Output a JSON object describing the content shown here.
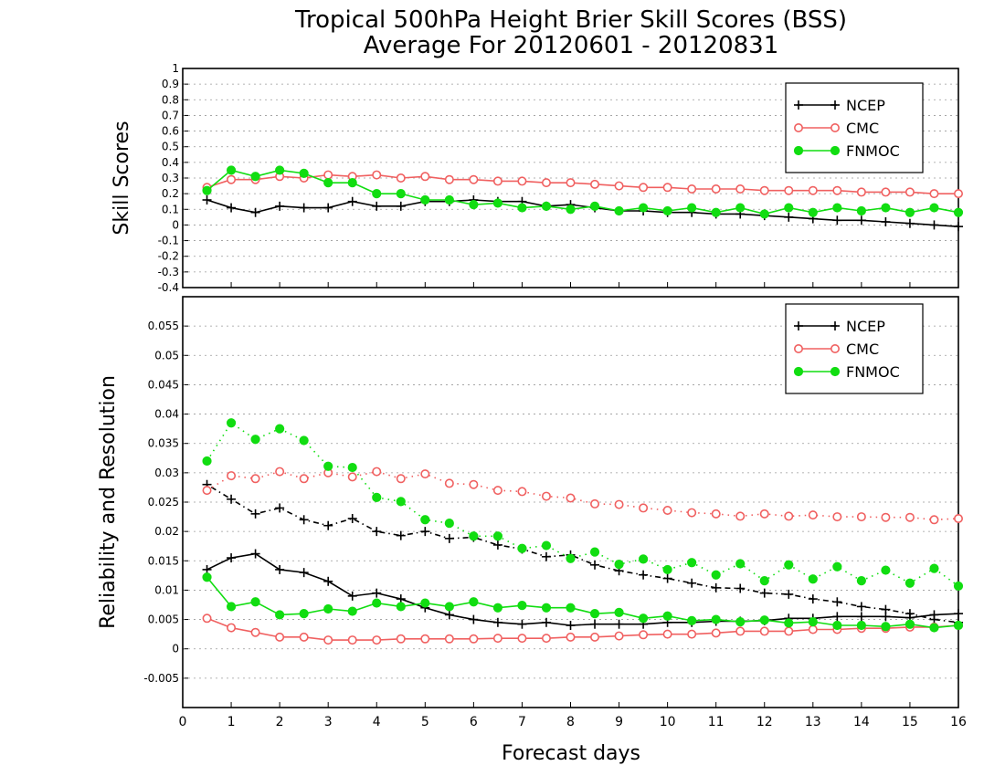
{
  "title_line1": "Tropical 500hPa Height Brier Skill Scores (BSS)",
  "title_line2": "Average For 20120601 - 20120831",
  "xlabel": "Forecast days",
  "x_ticks": [
    "0",
    "1",
    "2",
    "3",
    "4",
    "5",
    "6",
    "7",
    "8",
    "9",
    "10",
    "11",
    "12",
    "13",
    "14",
    "15",
    "16"
  ],
  "colors": {
    "NCEP": "#000000",
    "CMC": "#f06060",
    "FNMOC": "#11dd11"
  },
  "chart_data": [
    {
      "type": "line",
      "ylabel": "Skill Scores",
      "xlim": [
        0,
        16
      ],
      "ylim": [
        -0.4,
        1
      ],
      "y_ticks": [
        "1",
        "0.9",
        "0.8",
        "0.7",
        "0.6",
        "0.5",
        "0.4",
        "0.3",
        "0.2",
        "0.1",
        "0",
        "-0.1",
        "-0.2",
        "-0.3",
        "-0.4"
      ],
      "grid": true,
      "legend": "top-right",
      "x": [
        0.5,
        1,
        1.5,
        2,
        2.5,
        3,
        3.5,
        4,
        4.5,
        5,
        5.5,
        6,
        6.5,
        7,
        7.5,
        8,
        8.5,
        9,
        9.5,
        10,
        10.5,
        11,
        11.5,
        12,
        12.5,
        13,
        13.5,
        14,
        14.5,
        15,
        15.5,
        16
      ],
      "series": [
        {
          "name": "NCEP",
          "marker": "plus",
          "style": "solid",
          "values": [
            0.16,
            0.11,
            0.08,
            0.12,
            0.11,
            0.11,
            0.15,
            0.12,
            0.12,
            0.15,
            0.15,
            0.16,
            0.15,
            0.15,
            0.12,
            0.13,
            0.11,
            0.09,
            0.09,
            0.08,
            0.08,
            0.07,
            0.07,
            0.06,
            0.05,
            0.04,
            0.03,
            0.03,
            0.02,
            0.01,
            0.0,
            -0.01
          ]
        },
        {
          "name": "CMC",
          "marker": "circle",
          "style": "solid",
          "values": [
            0.24,
            0.29,
            0.29,
            0.31,
            0.3,
            0.32,
            0.31,
            0.32,
            0.3,
            0.31,
            0.29,
            0.29,
            0.28,
            0.28,
            0.27,
            0.27,
            0.26,
            0.25,
            0.24,
            0.24,
            0.23,
            0.23,
            0.23,
            0.22,
            0.22,
            0.22,
            0.22,
            0.21,
            0.21,
            0.21,
            0.2,
            0.2
          ]
        },
        {
          "name": "FNMOC",
          "marker": "dot",
          "style": "solid",
          "values": [
            0.22,
            0.35,
            0.31,
            0.35,
            0.33,
            0.27,
            0.27,
            0.2,
            0.2,
            0.16,
            0.16,
            0.13,
            0.14,
            0.11,
            0.12,
            0.1,
            0.12,
            0.09,
            0.11,
            0.09,
            0.11,
            0.08,
            0.11,
            0.07,
            0.11,
            0.08,
            0.11,
            0.09,
            0.11,
            0.08,
            0.11,
            0.08
          ]
        }
      ]
    },
    {
      "type": "line",
      "ylabel": "Reliability and Resolution",
      "xlim": [
        0,
        16
      ],
      "ylim": [
        -0.01,
        0.06
      ],
      "y_ticks": [
        "0.055",
        "0.05",
        "0.045",
        "0.04",
        "0.035",
        "0.03",
        "0.025",
        "0.02",
        "0.015",
        "0.01",
        "0.005",
        "0",
        "-0.005"
      ],
      "grid": true,
      "legend": "top-right",
      "x": [
        0.5,
        1,
        1.5,
        2,
        2.5,
        3,
        3.5,
        4,
        4.5,
        5,
        5.5,
        6,
        6.5,
        7,
        7.5,
        8,
        8.5,
        9,
        9.5,
        10,
        10.5,
        11,
        11.5,
        12,
        12.5,
        13,
        13.5,
        14,
        14.5,
        15,
        15.5,
        16
      ],
      "series": [
        {
          "name": "NCEP",
          "component": "resolution",
          "marker": "plus",
          "style": "dotted",
          "values": [
            0.028,
            0.0255,
            0.023,
            0.024,
            0.022,
            0.021,
            0.0222,
            0.02,
            0.0193,
            0.02,
            0.0188,
            0.019,
            0.0177,
            0.017,
            0.0157,
            0.016,
            0.0143,
            0.0133,
            0.0126,
            0.012,
            0.0112,
            0.0104,
            0.0103,
            0.0095,
            0.0093,
            0.0085,
            0.008,
            0.0072,
            0.0067,
            0.006,
            0.005,
            0.0045
          ]
        },
        {
          "name": "NCEP",
          "component": "reliability",
          "marker": "plus",
          "style": "solid",
          "values": [
            0.0135,
            0.0155,
            0.0162,
            0.0135,
            0.013,
            0.0115,
            0.009,
            0.0095,
            0.0085,
            0.007,
            0.0058,
            0.005,
            0.0045,
            0.0042,
            0.0045,
            0.004,
            0.0042,
            0.0042,
            0.0042,
            0.0045,
            0.0045,
            0.0047,
            0.0047,
            0.0048,
            0.0052,
            0.0052,
            0.0055,
            0.0055,
            0.0055,
            0.0053,
            0.0058,
            0.006
          ]
        },
        {
          "name": "CMC",
          "component": "resolution",
          "marker": "circle",
          "style": "dotted",
          "values": [
            0.027,
            0.0295,
            0.029,
            0.0302,
            0.029,
            0.03,
            0.0293,
            0.0302,
            0.029,
            0.0298,
            0.0282,
            0.028,
            0.027,
            0.0268,
            0.026,
            0.0257,
            0.0247,
            0.0246,
            0.024,
            0.0236,
            0.0232,
            0.023,
            0.0226,
            0.023,
            0.0226,
            0.0228,
            0.0225,
            0.0225,
            0.0224,
            0.0224,
            0.022,
            0.0222
          ]
        },
        {
          "name": "CMC",
          "component": "reliability",
          "marker": "circle",
          "style": "solid",
          "values": [
            0.0052,
            0.0036,
            0.0028,
            0.002,
            0.002,
            0.0015,
            0.0015,
            0.0015,
            0.0017,
            0.0017,
            0.0017,
            0.0017,
            0.0018,
            0.0018,
            0.0018,
            0.002,
            0.002,
            0.0022,
            0.0024,
            0.0025,
            0.0025,
            0.0027,
            0.003,
            0.003,
            0.003,
            0.0033,
            0.0033,
            0.0035,
            0.0035,
            0.0037,
            0.0037,
            0.004
          ]
        },
        {
          "name": "FNMOC",
          "component": "resolution",
          "marker": "dot",
          "style": "dotted",
          "values": [
            0.032,
            0.0385,
            0.0357,
            0.0375,
            0.0355,
            0.0311,
            0.0309,
            0.0258,
            0.0251,
            0.022,
            0.0214,
            0.0192,
            0.0192,
            0.0171,
            0.0176,
            0.0154,
            0.0165,
            0.0144,
            0.0153,
            0.0135,
            0.0147,
            0.0126,
            0.0145,
            0.0116,
            0.0143,
            0.0119,
            0.014,
            0.0116,
            0.0134,
            0.0112,
            0.0137,
            0.0107
          ]
        },
        {
          "name": "FNMOC",
          "component": "reliability",
          "marker": "dot",
          "style": "solid",
          "values": [
            0.0122,
            0.0072,
            0.008,
            0.0058,
            0.006,
            0.0068,
            0.0064,
            0.0078,
            0.0072,
            0.0078,
            0.0072,
            0.008,
            0.007,
            0.0074,
            0.007,
            0.007,
            0.006,
            0.0062,
            0.0052,
            0.0056,
            0.0048,
            0.005,
            0.0046,
            0.0049,
            0.0044,
            0.0046,
            0.004,
            0.004,
            0.0038,
            0.0042,
            0.0036,
            0.004
          ]
        }
      ]
    }
  ]
}
